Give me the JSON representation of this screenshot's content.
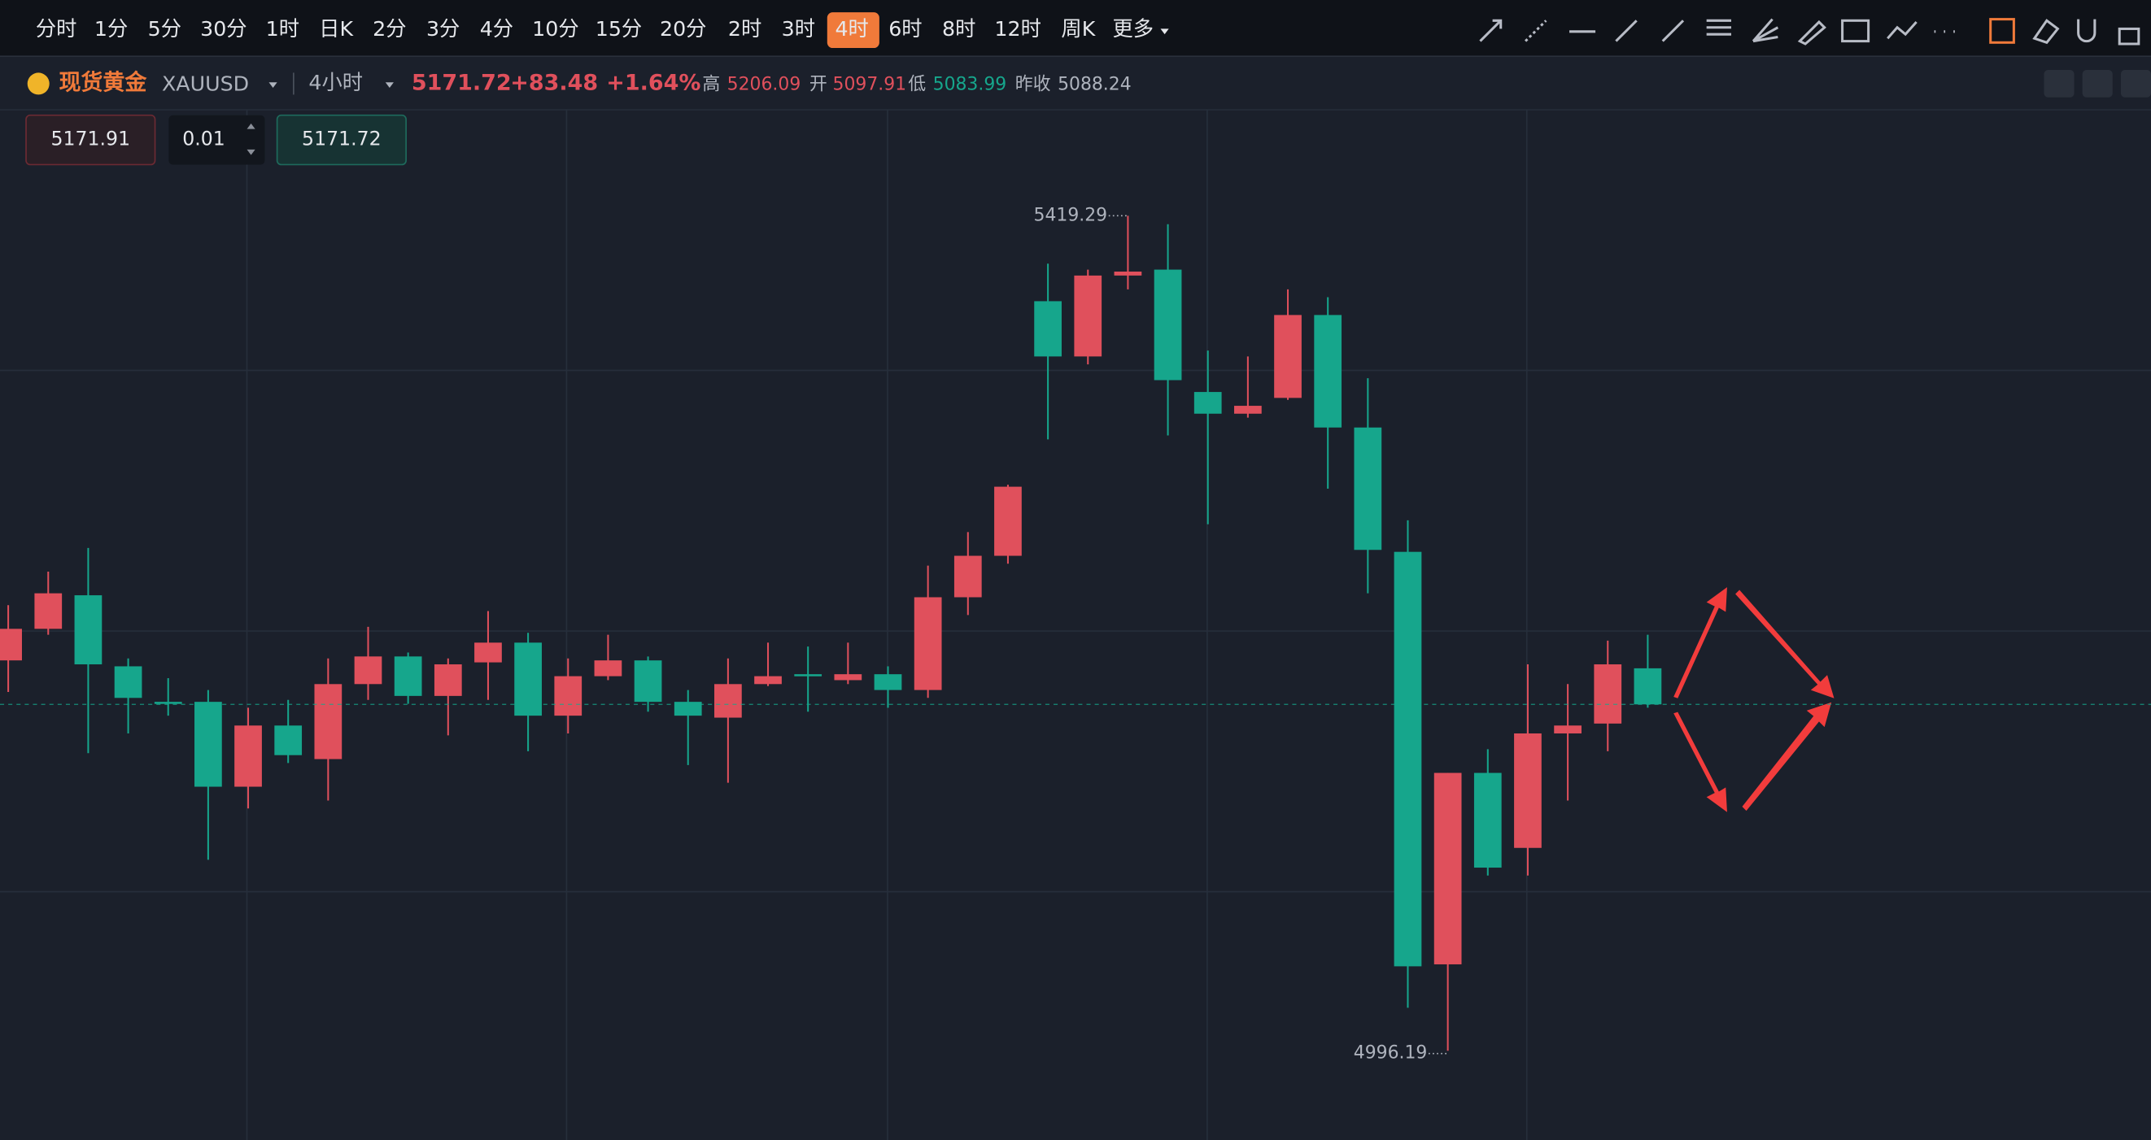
{
  "toolbar": {
    "periods": [
      "分时",
      "1分",
      "5分",
      "30分",
      "1时",
      "日K",
      "2分",
      "3分",
      "4分",
      "10分",
      "15分",
      "20分",
      "2时",
      "3时",
      "4时",
      "6时",
      "8时",
      "12时",
      "周K",
      "更多"
    ],
    "active": "4时"
  },
  "header": {
    "name": "现货黄金",
    "code": "XAUUSD",
    "period": "4小时",
    "price": "5171.72",
    "change": "+83.48",
    "change_percent": "+1.64%",
    "stats": [
      {
        "label": "高",
        "value": "5206.09"
      },
      {
        "label": "开",
        "value": "5097.91"
      },
      {
        "label": "低",
        "value": "5083.99"
      },
      {
        "label": "昨收",
        "value": "5088.24"
      }
    ]
  },
  "order": {
    "sell": "5171.91",
    "quantity": "0.01",
    "buy": "5171.72"
  },
  "chart_data": {
    "type": "candlestick",
    "up_color": "#e0505c",
    "down_color": "#16a68c",
    "ylim": [
      4951,
      5473
    ],
    "open": [
      5194,
      5210,
      5227,
      5191,
      5173,
      5173,
      5130,
      5161,
      5144,
      5182,
      5196,
      5176,
      5193,
      5203,
      5166,
      5186,
      5194,
      5173,
      5165,
      5182,
      5187,
      5184,
      5187,
      5179,
      5226,
      5247,
      5376,
      5348,
      5389,
      5392,
      5330,
      5319,
      5327,
      5369,
      5312,
      5249,
      5040,
      5137,
      5099,
      5157,
      5162,
      5190
    ],
    "high": [
      5222,
      5239,
      5251,
      5195,
      5185,
      5179,
      5170,
      5174,
      5195,
      5211,
      5198,
      5195,
      5219,
      5208,
      5195,
      5207,
      5196,
      5179,
      5195,
      5203,
      5201,
      5203,
      5191,
      5242,
      5259,
      5283,
      5395,
      5392,
      5419.29,
      5415,
      5351,
      5348,
      5382,
      5378,
      5337,
      5265,
      5137,
      5149,
      5192,
      5182,
      5204,
      5207
    ],
    "low": [
      5178,
      5207,
      5147,
      5157,
      5166,
      5093,
      5119,
      5142,
      5123,
      5174,
      5172,
      5156,
      5174,
      5148,
      5157,
      5184,
      5168,
      5141,
      5132,
      5181,
      5168,
      5182,
      5170,
      5175,
      5217,
      5243,
      5306,
      5344,
      5382,
      5308,
      5263,
      5317,
      5326,
      5281,
      5228,
      5018,
      4996.19,
      5085,
      5085,
      5123,
      5148,
      5170
    ],
    "close": [
      5210,
      5228,
      5192,
      5175,
      5173,
      5130,
      5161,
      5146,
      5182,
      5196,
      5176,
      5192,
      5203,
      5166,
      5186,
      5194,
      5173,
      5166,
      5182,
      5186,
      5186,
      5187,
      5179,
      5226,
      5247,
      5282,
      5348,
      5389,
      5391,
      5336,
      5319,
      5323,
      5369,
      5312,
      5250,
      5039,
      5137,
      5089,
      5157,
      5161,
      5192,
      5171.72
    ]
  }
}
